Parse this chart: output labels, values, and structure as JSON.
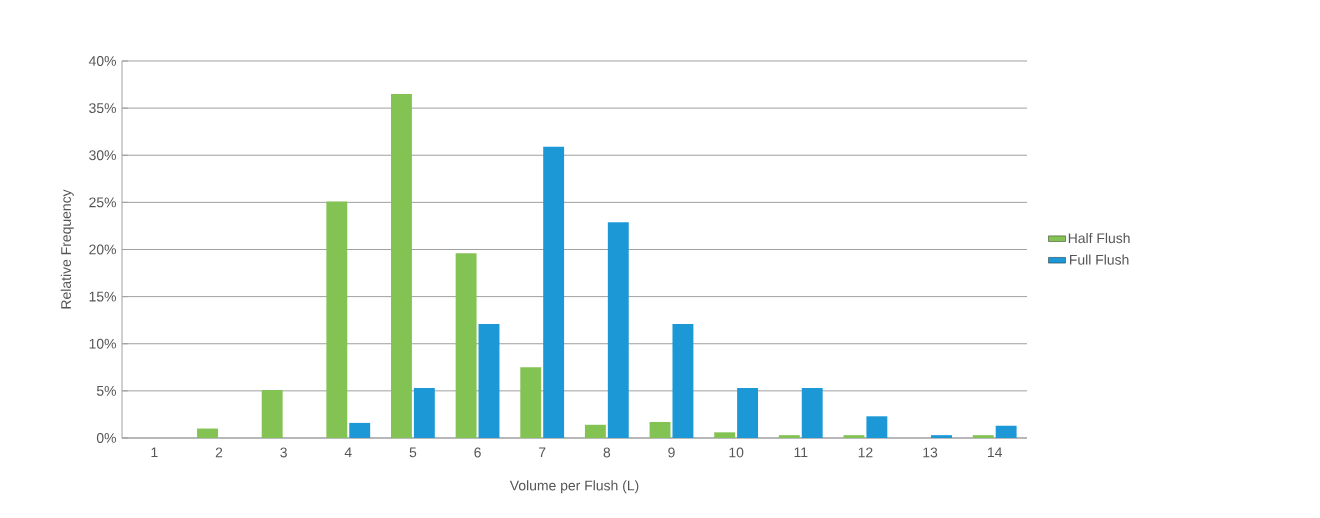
{
  "chart_data": {
    "type": "bar",
    "xlabel": "Volume per Flush (L)",
    "ylabel": "Relative Frequency",
    "categories": [
      "1",
      "2",
      "3",
      "4",
      "5",
      "6",
      "7",
      "8",
      "9",
      "10",
      "11",
      "12",
      "13",
      "14"
    ],
    "series": [
      {
        "name": "Half Flush",
        "color": "#83c353",
        "values": [
          0,
          1.0,
          5.1,
          25.1,
          36.5,
          19.6,
          7.5,
          1.4,
          1.7,
          0.6,
          0.3,
          0.3,
          0,
          0.3
        ]
      },
      {
        "name": "Full Flush",
        "color": "#1c98d6",
        "values": [
          0,
          0,
          0,
          1.6,
          5.3,
          12.1,
          30.9,
          22.9,
          12.1,
          5.3,
          5.3,
          2.3,
          0.3,
          1.3
        ]
      }
    ],
    "ylim": [
      0,
      40
    ],
    "yticks": [
      {
        "value": 0,
        "label": "0%"
      },
      {
        "value": 5,
        "label": "5%"
      },
      {
        "value": 10,
        "label": "10%"
      },
      {
        "value": 15,
        "label": "15%"
      },
      {
        "value": 20,
        "label": "20%"
      },
      {
        "value": 25,
        "label": "25%"
      },
      {
        "value": 30,
        "label": "30%"
      },
      {
        "value": 35,
        "label": "35%"
      },
      {
        "value": 40,
        "label": "40%"
      }
    ],
    "grid": "y",
    "legend": "right"
  }
}
